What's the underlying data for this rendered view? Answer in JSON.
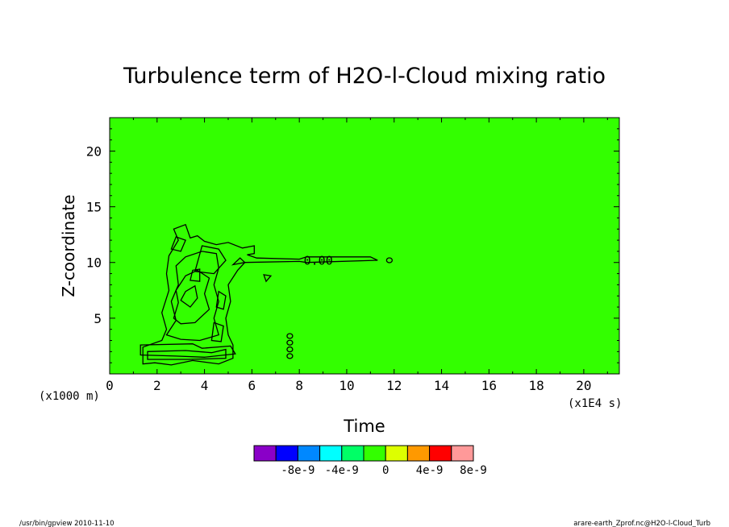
{
  "chart_data": {
    "type": "heatmap",
    "title": "Turbulence term of H2O-l-Cloud mixing ratio",
    "xlabel": "Time",
    "ylabel": "Z-coordinate",
    "x_unit": "(x1E4 s)",
    "y_unit": "(x1000 m)",
    "xlim": [
      0,
      21.5
    ],
    "ylim": [
      0,
      23
    ],
    "x_ticks": [
      "0",
      "2",
      "4",
      "6",
      "8",
      "10",
      "12",
      "14",
      "16",
      "18",
      "20"
    ],
    "y_ticks": [
      "5",
      "10",
      "15",
      "20"
    ],
    "background_value": 0,
    "background_color": "#33ff00",
    "contour_label": "0.00",
    "colorbar": {
      "colors": [
        "#8a00c8",
        "#0000ff",
        "#0088ff",
        "#00ffff",
        "#00ff66",
        "#33ff00",
        "#ddff00",
        "#ff9900",
        "#ff0000",
        "#ff9999"
      ],
      "labels": [
        "-8e-9",
        "-4e-9",
        "0",
        "4e-9",
        "8e-9"
      ]
    }
  },
  "footer": {
    "left": "/usr/bin/gpview   2010-11-10",
    "right": "arare-earth_Zprof.nc@H2O-l-Cloud_Turb"
  }
}
